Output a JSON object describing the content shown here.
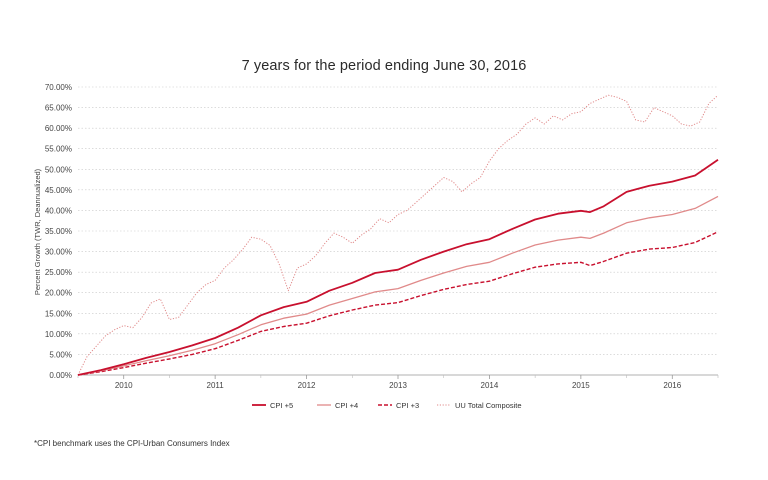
{
  "chart_data": {
    "type": "line",
    "title": "7 years for the period ending June 30, 2016",
    "ylabel": "Percent Growth (TWR, Deannualized)",
    "xlabel": "",
    "xlim": [
      2009.5,
      2016.5
    ],
    "ylim": [
      0,
      70
    ],
    "y_ticks": [
      "0.00%",
      "5.00%",
      "10.00%",
      "15.00%",
      "20.00%",
      "25.00%",
      "30.00%",
      "35.00%",
      "40.00%",
      "45.00%",
      "50.00%",
      "55.00%",
      "60.00%",
      "65.00%",
      "70.00%"
    ],
    "x_ticks": [
      "2010",
      "2011",
      "2012",
      "2013",
      "2014",
      "2015",
      "2016"
    ],
    "grid": true,
    "legend_position": "bottom",
    "series": [
      {
        "name": "CPI +5",
        "color": "#c8102e",
        "style": "solid",
        "x": [
          2009.5,
          2009.75,
          2010.0,
          2010.25,
          2010.5,
          2010.75,
          2011.0,
          2011.25,
          2011.5,
          2011.75,
          2012.0,
          2012.25,
          2012.5,
          2012.75,
          2013.0,
          2013.25,
          2013.5,
          2013.75,
          2014.0,
          2014.25,
          2014.5,
          2014.75,
          2015.0,
          2015.1,
          2015.25,
          2015.5,
          2015.75,
          2016.0,
          2016.25,
          2016.5
        ],
        "y": [
          0,
          1.2,
          2.6,
          4.2,
          5.6,
          7.2,
          9,
          11.5,
          14.5,
          16.5,
          17.8,
          20.5,
          22.4,
          24.8,
          25.6,
          28,
          30,
          31.8,
          33,
          35.5,
          37.8,
          39.2,
          39.9,
          39.6,
          41,
          44.5,
          46,
          47,
          48.5,
          52.3
        ]
      },
      {
        "name": "CPI +4",
        "color": "#e08a8a",
        "style": "solid",
        "x": [
          2009.5,
          2009.75,
          2010.0,
          2010.25,
          2010.5,
          2010.75,
          2011.0,
          2011.25,
          2011.5,
          2011.75,
          2012.0,
          2012.25,
          2012.5,
          2012.75,
          2013.0,
          2013.25,
          2013.5,
          2013.75,
          2014.0,
          2014.25,
          2014.5,
          2014.75,
          2015.0,
          2015.1,
          2015.25,
          2015.5,
          2015.75,
          2016.0,
          2016.25,
          2016.5
        ],
        "y": [
          0,
          1,
          2.2,
          3.5,
          4.7,
          6,
          7.6,
          9.8,
          12.2,
          13.8,
          14.8,
          17,
          18.6,
          20.2,
          21,
          23,
          24.8,
          26.4,
          27.4,
          29.6,
          31.6,
          32.8,
          33.5,
          33.2,
          34.5,
          37,
          38.2,
          39,
          40.5,
          43.4
        ]
      },
      {
        "name": "CPI +3",
        "color": "#c8102e",
        "style": "dashed",
        "x": [
          2009.5,
          2009.75,
          2010.0,
          2010.25,
          2010.5,
          2010.75,
          2011.0,
          2011.25,
          2011.5,
          2011.75,
          2012.0,
          2012.25,
          2012.5,
          2012.75,
          2013.0,
          2013.25,
          2013.5,
          2013.75,
          2014.0,
          2014.25,
          2014.5,
          2014.75,
          2015.0,
          2015.1,
          2015.25,
          2015.5,
          2015.75,
          2016.0,
          2016.25,
          2016.5
        ],
        "y": [
          0,
          0.8,
          1.8,
          2.9,
          3.9,
          5,
          6.4,
          8.4,
          10.6,
          11.8,
          12.6,
          14.4,
          15.8,
          17,
          17.6,
          19.3,
          20.8,
          22,
          22.8,
          24.6,
          26.2,
          27,
          27.4,
          26.6,
          27.6,
          29.6,
          30.6,
          31,
          32.2,
          34.8
        ]
      },
      {
        "name": "UU Total Composite",
        "color": "#e08a8a",
        "style": "dotted",
        "x": [
          2009.5,
          2009.6,
          2009.7,
          2009.8,
          2009.9,
          2010.0,
          2010.1,
          2010.2,
          2010.3,
          2010.4,
          2010.5,
          2010.6,
          2010.7,
          2010.8,
          2010.9,
          2011.0,
          2011.1,
          2011.2,
          2011.3,
          2011.4,
          2011.5,
          2011.6,
          2011.7,
          2011.8,
          2011.9,
          2012.0,
          2012.1,
          2012.2,
          2012.3,
          2012.4,
          2012.5,
          2012.6,
          2012.7,
          2012.8,
          2012.9,
          2013.0,
          2013.1,
          2013.2,
          2013.3,
          2013.4,
          2013.5,
          2013.6,
          2013.7,
          2013.8,
          2013.9,
          2014.0,
          2014.1,
          2014.2,
          2014.3,
          2014.4,
          2014.5,
          2014.6,
          2014.7,
          2014.8,
          2014.9,
          2015.0,
          2015.1,
          2015.2,
          2015.3,
          2015.4,
          2015.5,
          2015.6,
          2015.7,
          2015.8,
          2015.9,
          2016.0,
          2016.1,
          2016.2,
          2016.3,
          2016.4,
          2016.5
        ],
        "y": [
          0,
          4.5,
          7,
          9.5,
          11,
          12,
          11.5,
          14,
          17.5,
          18.5,
          13.5,
          14,
          17,
          20,
          22,
          23,
          26,
          28,
          30.5,
          33.5,
          33,
          31.5,
          27,
          20.5,
          26,
          27,
          29,
          32,
          34.5,
          33.5,
          32,
          34,
          35.5,
          38,
          37,
          39,
          40,
          42,
          44,
          46,
          48,
          47,
          44.5,
          46.5,
          48,
          52,
          55,
          57,
          58.5,
          61,
          62.5,
          61,
          63,
          62,
          63.5,
          64,
          66,
          67,
          68,
          67.5,
          66.5,
          62,
          61.5,
          65,
          64,
          63,
          61,
          60.5,
          61.5,
          66,
          68
        ]
      }
    ]
  },
  "footnote": "*CPI benchmark uses the CPI-Urban Consumers Index"
}
